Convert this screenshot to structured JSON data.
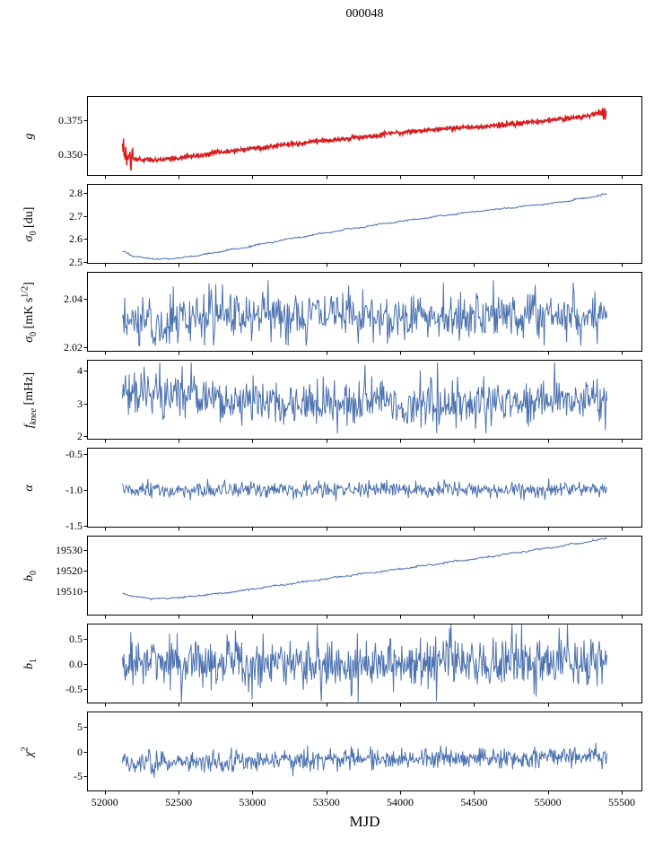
{
  "title": "000048",
  "xlabel": "MJD",
  "colors": {
    "line": "#4c72b0",
    "overlay": "#dd1c1a",
    "axis": "#000000",
    "background": "#ffffff"
  },
  "x_axis": {
    "label": "MJD",
    "range": [
      51880,
      55640
    ],
    "data_range": [
      52120,
      55400
    ],
    "ticks": [
      52000,
      52500,
      53000,
      53500,
      54000,
      54500,
      55000,
      55500
    ],
    "tick_labels": [
      "52000",
      "52500",
      "53000",
      "53500",
      "54000",
      "54500",
      "55000",
      "55500"
    ]
  },
  "chart_data": [
    {
      "id": "g",
      "type": "line",
      "ylabel_parts": [
        {
          "t": "g",
          "i": 1
        }
      ],
      "ylim": [
        0.334,
        0.393
      ],
      "yticks": [
        0.35,
        0.375
      ],
      "ytick_labels": [
        "0.350",
        "0.375"
      ],
      "series": [
        {
          "name": "gain-model",
          "color": "#4c72b0",
          "width": 1.0,
          "seed": 11,
          "points": 800,
          "noise": 0.0005,
          "trend": [
            [
              52120,
              0.3528
            ],
            [
              52150,
              0.3485
            ],
            [
              52200,
              0.3465
            ],
            [
              52300,
              0.3457
            ],
            [
              52450,
              0.3465
            ],
            [
              52600,
              0.3487
            ],
            [
              52800,
              0.3516
            ],
            [
              53000,
              0.3543
            ],
            [
              53250,
              0.3572
            ],
            [
              53500,
              0.36
            ],
            [
              53750,
              0.3628
            ],
            [
              54000,
              0.3661
            ],
            [
              54150,
              0.3675
            ],
            [
              54300,
              0.3686
            ],
            [
              54500,
              0.37
            ],
            [
              54700,
              0.3716
            ],
            [
              54900,
              0.3737
            ],
            [
              55100,
              0.376
            ],
            [
              55250,
              0.378
            ],
            [
              55380,
              0.3812
            ],
            [
              55400,
              0.3815
            ]
          ]
        },
        {
          "name": "gain-data",
          "color": "#dd1c1a",
          "width": 1.5,
          "seed": 12,
          "points": 900,
          "noise": 0.0009,
          "clip": [
            0.336,
            0.3905
          ],
          "bursts": [
            {
              "x0": 52112,
              "x1": 52195,
              "noise": 0.004
            },
            {
              "x0": 55345,
              "x1": 55400,
              "noise": 0.0022
            }
          ],
          "spikes": [
            [
              55390,
              -0.005
            ]
          ],
          "trend": [
            [
              52120,
              0.3528
            ],
            [
              52150,
              0.3485
            ],
            [
              52200,
              0.3465
            ],
            [
              52300,
              0.3457
            ],
            [
              52450,
              0.3465
            ],
            [
              52600,
              0.3487
            ],
            [
              52800,
              0.3516
            ],
            [
              53000,
              0.3543
            ],
            [
              53250,
              0.3572
            ],
            [
              53500,
              0.36
            ],
            [
              53750,
              0.3628
            ],
            [
              54000,
              0.3661
            ],
            [
              54150,
              0.3675
            ],
            [
              54300,
              0.3686
            ],
            [
              54500,
              0.37
            ],
            [
              54700,
              0.3716
            ],
            [
              54900,
              0.3737
            ],
            [
              55100,
              0.376
            ],
            [
              55250,
              0.378
            ],
            [
              55380,
              0.3812
            ],
            [
              55400,
              0.3815
            ]
          ]
        }
      ]
    },
    {
      "id": "sigma0-du",
      "type": "line",
      "ylabel_parts": [
        {
          "t": "σ",
          "i": 1
        },
        {
          "t": "0",
          "sub": 1
        },
        {
          "t": " [du]"
        }
      ],
      "ylim": [
        2.492,
        2.839
      ],
      "yticks": [
        2.5,
        2.6,
        2.7,
        2.8
      ],
      "ytick_labels": [
        "2.5",
        "2.6",
        "2.7",
        "2.8"
      ],
      "series": [
        {
          "name": "sigma0-du-curve",
          "color": "#4c72b0",
          "width": 1.0,
          "seed": 21,
          "points": 550,
          "noise": 0.0018,
          "trend": [
            [
              52120,
              2.547
            ],
            [
              52200,
              2.524
            ],
            [
              52320,
              2.513
            ],
            [
              52450,
              2.514
            ],
            [
              52600,
              2.525
            ],
            [
              52750,
              2.541
            ],
            [
              52900,
              2.558
            ],
            [
              53100,
              2.582
            ],
            [
              53300,
              2.606
            ],
            [
              53500,
              2.627
            ],
            [
              53700,
              2.648
            ],
            [
              53900,
              2.667
            ],
            [
              54100,
              2.685
            ],
            [
              54300,
              2.702
            ],
            [
              54500,
              2.718
            ],
            [
              54700,
              2.732
            ],
            [
              54900,
              2.746
            ],
            [
              55100,
              2.76
            ],
            [
              55250,
              2.778
            ],
            [
              55400,
              2.795
            ]
          ]
        }
      ]
    },
    {
      "id": "sigma0-mks",
      "type": "line",
      "ylabel_parts": [
        {
          "t": "σ",
          "i": 1
        },
        {
          "t": "0",
          "sub": 1
        },
        {
          "t": " [mK s"
        },
        {
          "t": "1/2",
          "sup": 1
        },
        {
          "t": "]"
        }
      ],
      "ylim": [
        2.018,
        2.051
      ],
      "yticks": [
        2.02,
        2.04
      ],
      "ytick_labels": [
        "2.02",
        "2.04"
      ],
      "series": [
        {
          "name": "sigma0-mks-curve",
          "color": "#4c72b0",
          "width": 1.0,
          "seed": 31,
          "points": 650,
          "noise": 0.0052,
          "clip": [
            2.0205,
            2.0475
          ],
          "trend": [
            [
              52120,
              2.0295
            ],
            [
              52250,
              2.0308
            ],
            [
              52400,
              2.029
            ],
            [
              52600,
              2.033
            ],
            [
              53000,
              2.033
            ],
            [
              53500,
              2.0332
            ],
            [
              54000,
              2.033
            ],
            [
              54500,
              2.0332
            ],
            [
              55000,
              2.033
            ],
            [
              55400,
              2.0322
            ]
          ]
        }
      ]
    },
    {
      "id": "f-knee",
      "type": "line",
      "ylabel_parts": [
        {
          "t": "f",
          "i": 1
        },
        {
          "t": "knee",
          "sub": 1,
          "i": 1
        },
        {
          "t": " [mHz]"
        }
      ],
      "ylim": [
        1.89,
        4.33
      ],
      "yticks": [
        2,
        3,
        4
      ],
      "ytick_labels": [
        "2",
        "3",
        "4"
      ],
      "series": [
        {
          "name": "fknee-curve",
          "color": "#4c72b0",
          "width": 1.0,
          "seed": 41,
          "points": 650,
          "noise": 0.36,
          "clip": [
            2.08,
            4.25
          ],
          "tail": {
            "p": 0.02,
            "scale": 1.8
          },
          "trend": [
            [
              52120,
              3.35
            ],
            [
              52300,
              3.3
            ],
            [
              52500,
              3.22
            ],
            [
              52700,
              3.1
            ],
            [
              53000,
              3.02
            ],
            [
              53500,
              3.0
            ],
            [
              54000,
              3.0
            ],
            [
              54500,
              3.02
            ],
            [
              55000,
              3.05
            ],
            [
              55400,
              3.08
            ]
          ]
        }
      ]
    },
    {
      "id": "alpha",
      "type": "line",
      "ylabel_parts": [
        {
          "t": "α",
          "i": 1
        }
      ],
      "ylim": [
        -1.52,
        -0.41
      ],
      "yticks": [
        -0.5,
        -1.0,
        -1.5
      ],
      "ytick_labels": [
        "-0.5",
        "-1.0",
        "-1.5"
      ],
      "series": [
        {
          "name": "alpha-curve",
          "color": "#4c72b0",
          "width": 1.0,
          "seed": 51,
          "points": 650,
          "noise": 0.055,
          "clip": [
            -1.19,
            -0.8
          ],
          "trend": [
            [
              52120,
              -1.01
            ],
            [
              53000,
              -1.0
            ],
            [
              54000,
              -1.0
            ],
            [
              55400,
              -1.0
            ]
          ]
        }
      ]
    },
    {
      "id": "b0",
      "type": "line",
      "ylabel_parts": [
        {
          "t": "b",
          "i": 1
        },
        {
          "t": "0",
          "sub": 1
        }
      ],
      "ylim": [
        19498,
        19537
      ],
      "yticks": [
        19510,
        19520,
        19530
      ],
      "ytick_labels": [
        "19510",
        "19520",
        "19530"
      ],
      "series": [
        {
          "name": "b0-curve",
          "color": "#4c72b0",
          "width": 1.0,
          "seed": 61,
          "points": 550,
          "noise": 0.22,
          "trend": [
            [
              52120,
              19508.8
            ],
            [
              52200,
              19507.2
            ],
            [
              52320,
              19506.3
            ],
            [
              52450,
              19506.5
            ],
            [
              52600,
              19507.4
            ],
            [
              52800,
              19509.0
            ],
            [
              53000,
              19510.9
            ],
            [
              53200,
              19512.9
            ],
            [
              53400,
              19514.9
            ],
            [
              53600,
              19516.9
            ],
            [
              53800,
              19518.8
            ],
            [
              54000,
              19520.7
            ],
            [
              54200,
              19522.7
            ],
            [
              54400,
              19524.7
            ],
            [
              54600,
              19526.7
            ],
            [
              54800,
              19528.8
            ],
            [
              55000,
              19530.9
            ],
            [
              55200,
              19533.1
            ],
            [
              55400,
              19535.6
            ]
          ]
        }
      ]
    },
    {
      "id": "b1",
      "type": "line",
      "ylabel_parts": [
        {
          "t": "b",
          "i": 1
        },
        {
          "t": "1",
          "sub": 1
        }
      ],
      "ylim": [
        -0.79,
        0.8
      ],
      "yticks": [
        -0.5,
        0.0,
        0.5
      ],
      "ytick_labels": [
        "-0.5",
        "0.0",
        "0.5"
      ],
      "series": [
        {
          "name": "b1-curve",
          "color": "#4c72b0",
          "width": 1.0,
          "seed": 71,
          "points": 700,
          "noise": 0.26,
          "clip": [
            -0.78,
            0.78
          ],
          "trend": [
            [
              52120,
              0.03
            ],
            [
              53000,
              0.01
            ],
            [
              54000,
              0.02
            ],
            [
              55400,
              0.03
            ]
          ]
        }
      ]
    },
    {
      "id": "chi2",
      "type": "line",
      "ylabel_parts": [
        {
          "t": "χ",
          "i": 1
        },
        {
          "t": "2",
          "sup": 1
        }
      ],
      "ylim": [
        -8,
        8
      ],
      "yticks": [
        -5,
        0,
        5
      ],
      "ytick_labels": [
        "-5",
        "0",
        "5"
      ],
      "series": [
        {
          "name": "chi2-curve",
          "color": "#4c72b0",
          "width": 1.0,
          "seed": 81,
          "points": 700,
          "noise": 1.05,
          "clip": [
            -5.3,
            4.8
          ],
          "tail": {
            "p": 0.01,
            "scale": 2.5
          },
          "trend": [
            [
              52120,
              -2.1
            ],
            [
              52600,
              -2.2
            ],
            [
              53000,
              -1.9
            ],
            [
              53500,
              -1.7
            ],
            [
              54000,
              -1.5
            ],
            [
              54500,
              -1.4
            ],
            [
              55000,
              -1.3
            ],
            [
              55400,
              -1.1
            ]
          ]
        }
      ]
    }
  ]
}
